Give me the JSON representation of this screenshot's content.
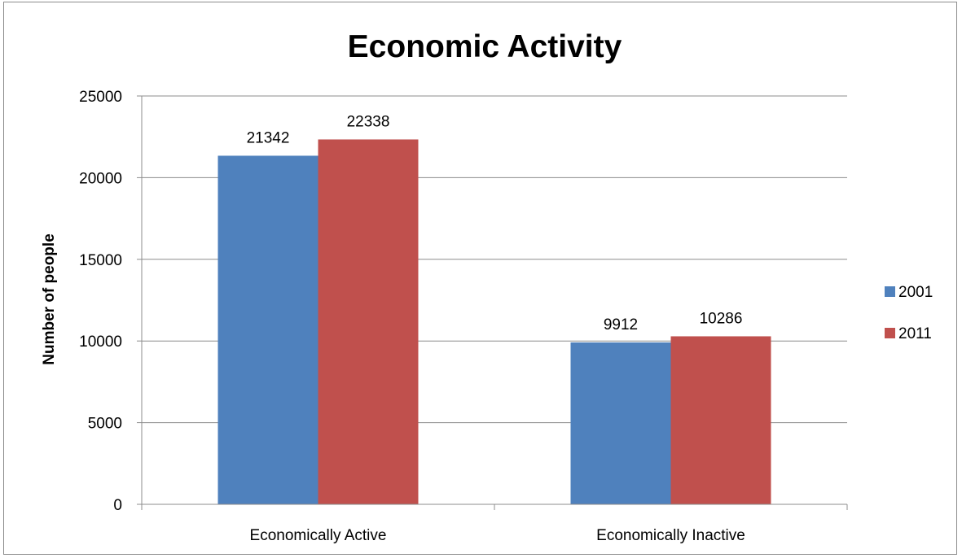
{
  "chart_data": {
    "type": "bar",
    "title": "Economic Activity",
    "xlabel": "",
    "ylabel": "Number of people",
    "categories": [
      "Economically Active",
      "Economically Inactive"
    ],
    "series": [
      {
        "name": "2001",
        "color": "#4f81bd",
        "values": [
          21342,
          9912
        ],
        "labels": [
          "21342",
          "9912"
        ]
      },
      {
        "name": "2011",
        "color": "#c0504d",
        "values": [
          22338,
          10286
        ],
        "labels": [
          "22338",
          "10286"
        ]
      }
    ],
    "ylim": [
      0,
      25000
    ],
    "yticks": [
      0,
      5000,
      10000,
      15000,
      20000,
      25000
    ],
    "ytick_labels": [
      "0",
      "5000",
      "10000",
      "15000",
      "20000",
      "25000"
    ],
    "grid": true,
    "legend": "right",
    "data_labels": true
  }
}
